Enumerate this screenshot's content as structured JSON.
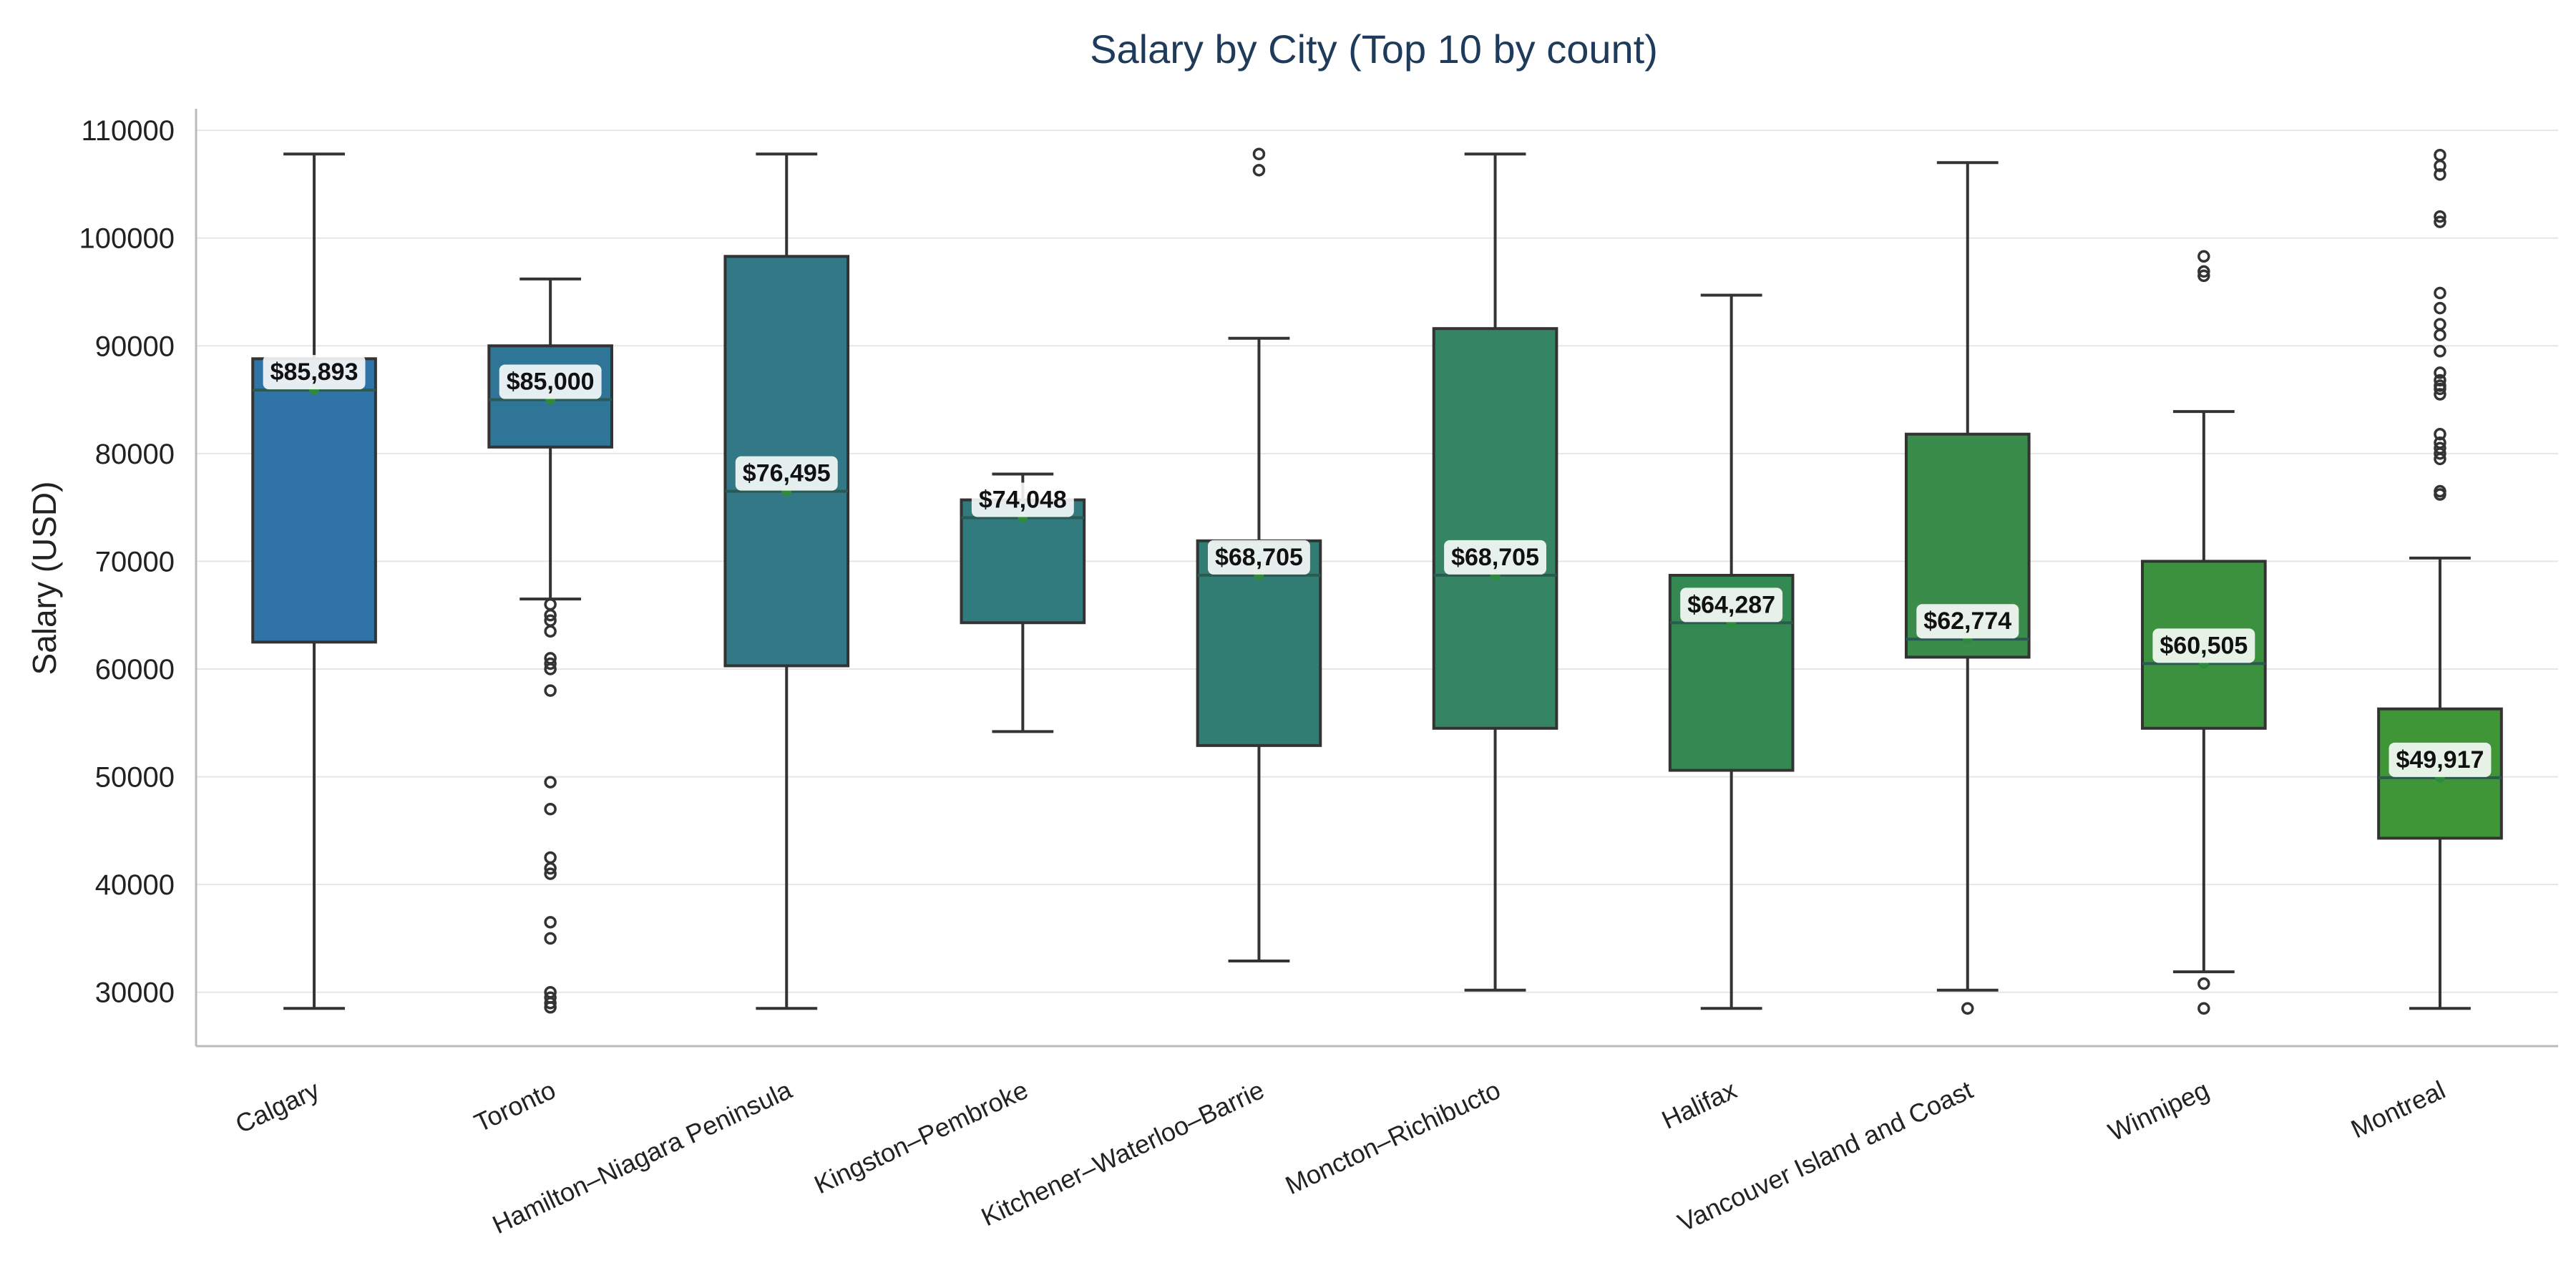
{
  "chart_data": {
    "type": "box",
    "title": "Salary by City (Top 10 by count)",
    "xlabel": "",
    "ylabel": "Salary (USD)",
    "ylim": [
      25000,
      112000
    ],
    "yticks": [
      30000,
      40000,
      50000,
      60000,
      70000,
      80000,
      90000,
      100000,
      110000
    ],
    "grid": "horizontal",
    "legend": "none",
    "categories": [
      "Calgary",
      "Toronto",
      "Hamilton–Niagara Peninsula",
      "Kingston–Pembroke",
      "Kitchener–Waterloo–Barrie",
      "Moncton–Richibucto",
      "Halifax",
      "Vancouver Island and Coast",
      "Winnipeg",
      "Montreal"
    ],
    "boxes": [
      {
        "whisker_low": 28500,
        "q1": 62500,
        "median": 85893,
        "q3": 88800,
        "whisker_high": 107800,
        "outliers": [],
        "label": "$85,893",
        "color": "#3073a6"
      },
      {
        "whisker_low": 66500,
        "q1": 80600,
        "median": 85000,
        "q3": 90000,
        "whisker_high": 96200,
        "outliers": [
          66000,
          65000,
          64500,
          63500,
          61000,
          60500,
          60000,
          58000,
          49500,
          47000,
          42500,
          41500,
          41000,
          36500,
          35000,
          30000,
          29500,
          29000,
          28600
        ],
        "label": "$85,000",
        "color": "#2f7597"
      },
      {
        "whisker_low": 28500,
        "q1": 60300,
        "median": 76495,
        "q3": 98300,
        "whisker_high": 107800,
        "outliers": [],
        "label": "$76,495",
        "color": "#327887"
      },
      {
        "whisker_low": 54200,
        "q1": 64300,
        "median": 74048,
        "q3": 75700,
        "whisker_high": 78100,
        "outliers": [],
        "label": "$74,048",
        "color": "#317b7f"
      },
      {
        "whisker_low": 32900,
        "q1": 52900,
        "median": 68705,
        "q3": 71900,
        "whisker_high": 90700,
        "outliers": [
          107800,
          106300
        ],
        "label": "$68,705",
        "color": "#317d74"
      },
      {
        "whisker_low": 30200,
        "q1": 54500,
        "median": 68705,
        "q3": 91600,
        "whisker_high": 107800,
        "outliers": [],
        "label": "$68,705",
        "color": "#358564"
      },
      {
        "whisker_low": 28500,
        "q1": 50600,
        "median": 64287,
        "q3": 68700,
        "whisker_high": 94700,
        "outliers": [],
        "label": "$64,287",
        "color": "#348952"
      },
      {
        "whisker_low": 30200,
        "q1": 61100,
        "median": 62774,
        "q3": 81800,
        "whisker_high": 107000,
        "outliers": [
          28500
        ],
        "label": "$62,774",
        "color": "#398c4a"
      },
      {
        "whisker_low": 31900,
        "q1": 54500,
        "median": 60505,
        "q3": 70000,
        "whisker_high": 83900,
        "outliers": [
          98300,
          96900,
          96500,
          30800,
          28500
        ],
        "label": "$60,505",
        "color": "#3c913f"
      },
      {
        "whisker_low": 28500,
        "q1": 44300,
        "median": 49917,
        "q3": 56300,
        "whisker_high": 70300,
        "outliers": [
          107700,
          106700,
          105900,
          102000,
          101500,
          94900,
          93500,
          92000,
          91000,
          89500,
          87500,
          86800,
          86300,
          86000,
          85500,
          81800,
          81000,
          80500,
          80000,
          79500,
          76500,
          76200
        ],
        "label": "$49,917",
        "color": "#3e9636"
      }
    ]
  }
}
